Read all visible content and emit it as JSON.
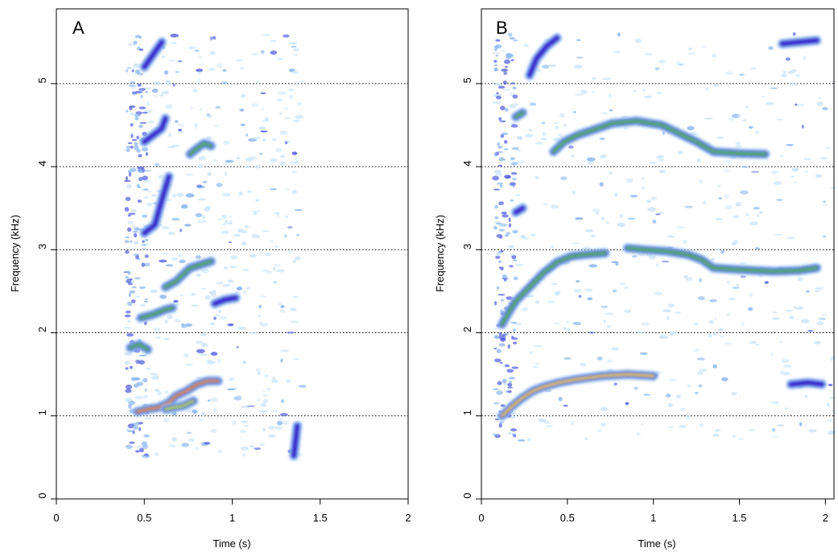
{
  "colors": {
    "background": "#ffffff",
    "frame": "#000000",
    "gridline": "#000000",
    "intensity_scale": [
      "#cfe6fa",
      "#8fbaf0",
      "#5a66e0",
      "#3b2bd0",
      "#57b35a",
      "#b8d35a",
      "#f2c15a",
      "#e8503a",
      "#c81e1e"
    ]
  },
  "chart_data": [
    {
      "type": "heatmap",
      "panel_label": "A",
      "xlabel": "Time (s)",
      "ylabel": "Frequency (kHz)",
      "xlim": [
        0,
        2
      ],
      "ylim": [
        0,
        5.9
      ],
      "xticks": [
        0,
        0.5,
        1,
        1.5,
        2
      ],
      "xtick_labels": [
        "0",
        "0.5",
        "1",
        "1.5",
        "2"
      ],
      "yticks": [
        0,
        1,
        2,
        3,
        4,
        5
      ],
      "ytick_labels": [
        "0",
        "1",
        "2",
        "3",
        "4",
        "5"
      ],
      "grid": "horizontal dotted at y ticks",
      "traces": [
        {
          "points": [
            [
              0.46,
              1.05
            ],
            [
              0.52,
              1.08
            ],
            [
              0.58,
              1.1
            ],
            [
              0.64,
              1.16
            ],
            [
              0.68,
              1.24
            ],
            [
              0.74,
              1.3
            ],
            [
              0.8,
              1.38
            ],
            [
              0.86,
              1.42
            ],
            [
              0.92,
              1.42
            ]
          ],
          "intensity": 0.9
        },
        {
          "points": [
            [
              0.62,
              1.08
            ],
            [
              0.72,
              1.12
            ],
            [
              0.78,
              1.18
            ]
          ],
          "intensity": 0.55
        },
        {
          "points": [
            [
              0.42,
              1.82
            ],
            [
              0.47,
              1.86
            ],
            [
              0.52,
              1.8
            ]
          ],
          "intensity": 0.45
        },
        {
          "points": [
            [
              0.48,
              2.18
            ],
            [
              0.55,
              2.22
            ],
            [
              0.62,
              2.28
            ],
            [
              0.66,
              2.3
            ]
          ],
          "intensity": 0.45
        },
        {
          "points": [
            [
              0.62,
              2.55
            ],
            [
              0.68,
              2.62
            ],
            [
              0.72,
              2.7
            ],
            [
              0.76,
              2.78
            ],
            [
              0.82,
              2.82
            ],
            [
              0.88,
              2.86
            ]
          ],
          "intensity": 0.5
        },
        {
          "points": [
            [
              0.76,
              4.15
            ],
            [
              0.8,
              4.22
            ],
            [
              0.84,
              4.28
            ],
            [
              0.88,
              4.25
            ]
          ],
          "intensity": 0.5
        },
        {
          "points": [
            [
              0.5,
              4.3
            ],
            [
              0.55,
              4.38
            ],
            [
              0.6,
              4.46
            ],
            [
              0.62,
              4.58
            ]
          ],
          "intensity": 0.35
        },
        {
          "points": [
            [
              0.5,
              5.2
            ],
            [
              0.55,
              5.35
            ],
            [
              0.6,
              5.5
            ]
          ],
          "intensity": 0.25
        },
        {
          "points": [
            [
              0.9,
              2.35
            ],
            [
              0.96,
              2.4
            ],
            [
              1.02,
              2.42
            ]
          ],
          "intensity": 0.3
        },
        {
          "points": [
            [
              1.35,
              0.52
            ],
            [
              1.36,
              0.7
            ],
            [
              1.37,
              0.88
            ]
          ],
          "intensity": 0.3
        },
        {
          "points": [
            [
              0.5,
              3.2
            ],
            [
              0.56,
              3.3
            ],
            [
              0.6,
              3.6
            ],
            [
              0.64,
              3.88
            ]
          ],
          "intensity": 0.3
        }
      ],
      "noise_region": {
        "x": [
          0.4,
          1.4
        ],
        "y": [
          0.5,
          5.6
        ]
      }
    },
    {
      "type": "heatmap",
      "panel_label": "B",
      "xlabel": "Time (s)",
      "ylabel": "Frequency (kHz)",
      "xlim": [
        0,
        2.05
      ],
      "ylim": [
        0,
        5.9
      ],
      "xticks": [
        0,
        0.5,
        1,
        1.5,
        2
      ],
      "xtick_labels": [
        "0",
        "0.5",
        "1",
        "1.5",
        "2"
      ],
      "yticks": [
        0,
        1,
        2,
        3,
        4,
        5
      ],
      "ytick_labels": [
        "0",
        "1",
        "2",
        "3",
        "4",
        "5"
      ],
      "grid": "horizontal dotted at y ticks",
      "traces": [
        {
          "points": [
            [
              0.12,
              1.0
            ],
            [
              0.18,
              1.12
            ],
            [
              0.24,
              1.22
            ],
            [
              0.3,
              1.3
            ],
            [
              0.36,
              1.35
            ],
            [
              0.45,
              1.4
            ],
            [
              0.55,
              1.44
            ],
            [
              0.7,
              1.48
            ],
            [
              0.85,
              1.5
            ],
            [
              1.0,
              1.48
            ]
          ],
          "intensity": 0.8
        },
        {
          "points": [
            [
              0.12,
              2.1
            ],
            [
              0.16,
              2.25
            ],
            [
              0.2,
              2.38
            ],
            [
              0.28,
              2.55
            ],
            [
              0.36,
              2.72
            ],
            [
              0.44,
              2.85
            ],
            [
              0.52,
              2.92
            ],
            [
              0.6,
              2.94
            ],
            [
              0.72,
              2.96
            ]
          ],
          "intensity": 0.5
        },
        {
          "points": [
            [
              0.85,
              3.02
            ],
            [
              0.95,
              3.0
            ],
            [
              1.08,
              2.98
            ],
            [
              1.2,
              2.94
            ],
            [
              1.28,
              2.88
            ],
            [
              1.35,
              2.78
            ],
            [
              1.5,
              2.76
            ],
            [
              1.7,
              2.74
            ],
            [
              1.85,
              2.75
            ],
            [
              1.95,
              2.78
            ]
          ],
          "intensity": 0.5
        },
        {
          "points": [
            [
              0.42,
              4.18
            ],
            [
              0.48,
              4.3
            ],
            [
              0.56,
              4.38
            ],
            [
              0.66,
              4.45
            ],
            [
              0.76,
              4.52
            ],
            [
              0.9,
              4.55
            ],
            [
              1.05,
              4.5
            ],
            [
              1.15,
              4.4
            ],
            [
              1.25,
              4.3
            ],
            [
              1.35,
              4.18
            ],
            [
              1.5,
              4.16
            ],
            [
              1.65,
              4.15
            ]
          ],
          "intensity": 0.4
        },
        {
          "points": [
            [
              0.2,
              4.6
            ],
            [
              0.24,
              4.65
            ]
          ],
          "intensity": 0.4
        },
        {
          "points": [
            [
              0.28,
              5.1
            ],
            [
              0.32,
              5.3
            ],
            [
              0.38,
              5.45
            ],
            [
              0.44,
              5.55
            ]
          ],
          "intensity": 0.3
        },
        {
          "points": [
            [
              0.2,
              3.45
            ],
            [
              0.24,
              3.5
            ]
          ],
          "intensity": 0.25
        },
        {
          "points": [
            [
              1.75,
              5.48
            ],
            [
              1.85,
              5.5
            ],
            [
              1.95,
              5.52
            ]
          ],
          "intensity": 0.2
        },
        {
          "points": [
            [
              1.8,
              1.38
            ],
            [
              1.9,
              1.4
            ],
            [
              1.98,
              1.38
            ]
          ],
          "intensity": 0.2
        }
      ],
      "noise_region": {
        "x": [
          0.08,
          2.05
        ],
        "y": [
          0.7,
          5.6
        ]
      }
    }
  ]
}
